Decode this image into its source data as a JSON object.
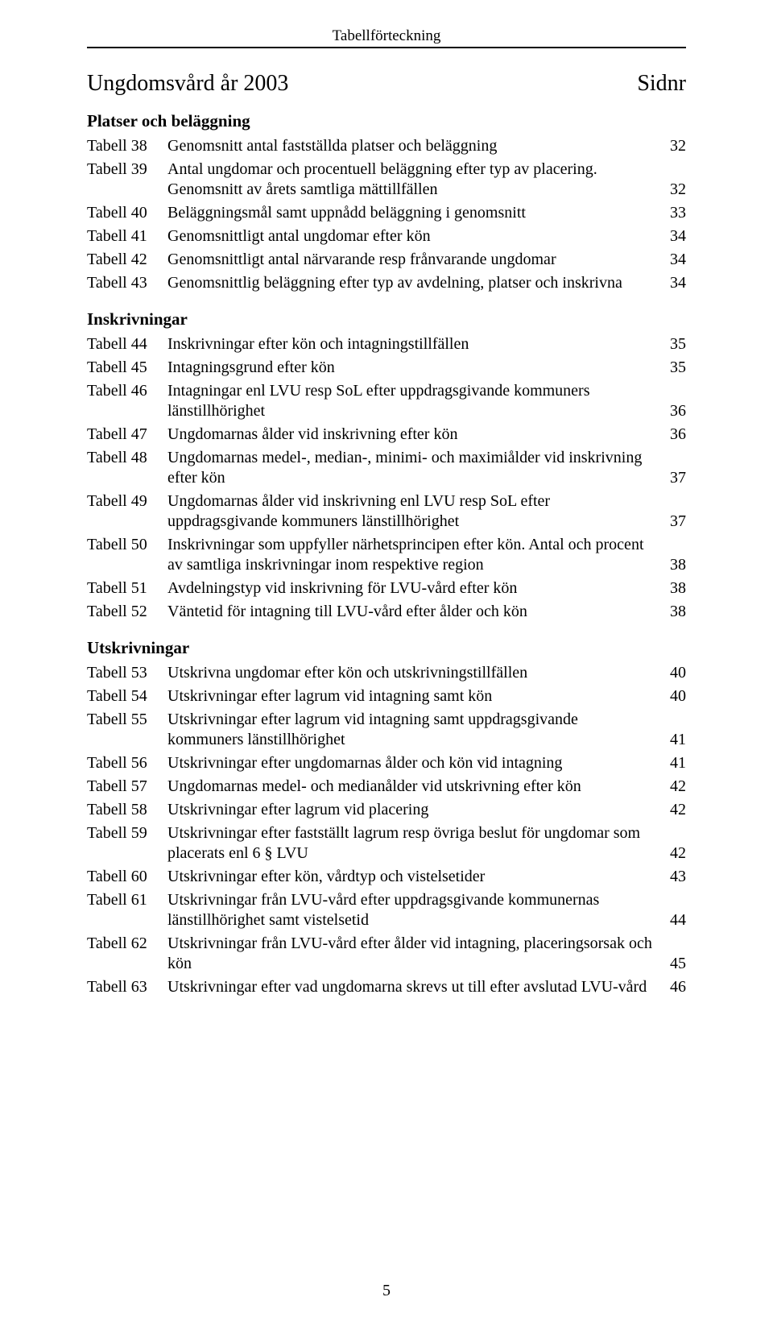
{
  "running_head": "Tabellförteckning",
  "title": "Ungdomsvård år 2003",
  "sidnr_label": "Sidnr",
  "page_number": "5",
  "sections": [
    {
      "heading": "Platser och beläggning",
      "rows": [
        {
          "label": "Tabell 38",
          "title": "Genomsnitt antal fastställda platser och beläggning",
          "page": "32"
        },
        {
          "label": "Tabell 39",
          "title": "Antal ungdomar och procentuell beläggning efter typ av placering. Genomsnitt av årets samtliga mättillfällen",
          "page": "32"
        },
        {
          "label": "Tabell 40",
          "title": "Beläggningsmål samt uppnådd beläggning i genomsnitt",
          "page": "33"
        },
        {
          "label": "Tabell 41",
          "title": "Genomsnittligt antal ungdomar efter kön",
          "page": "34"
        },
        {
          "label": "Tabell 42",
          "title": "Genomsnittligt antal närvarande resp frånvarande ungdomar",
          "page": "34"
        },
        {
          "label": "Tabell 43",
          "title": "Genomsnittlig beläggning efter typ av avdelning, platser och inskrivna",
          "page": "34"
        }
      ]
    },
    {
      "heading": "Inskrivningar",
      "rows": [
        {
          "label": "Tabell 44",
          "title": "Inskrivningar efter kön och intagningstillfällen",
          "page": "35"
        },
        {
          "label": "Tabell 45",
          "title": "Intagningsgrund efter kön",
          "page": "35"
        },
        {
          "label": "Tabell 46",
          "title": "Intagningar enl LVU resp SoL efter uppdragsgivande kommuners länstillhörighet",
          "page": "36"
        },
        {
          "label": "Tabell 47",
          "title": "Ungdomarnas ålder vid inskrivning efter kön",
          "page": "36"
        },
        {
          "label": "Tabell 48",
          "title": "Ungdomarnas medel-, median-, minimi- och maximiålder vid inskrivning efter kön",
          "page": "37"
        },
        {
          "label": "Tabell 49",
          "title": "Ungdomarnas ålder vid inskrivning enl LVU resp SoL efter uppdragsgivande kommuners länstillhörighet",
          "page": "37"
        },
        {
          "label": "Tabell 50",
          "title": "Inskrivningar som uppfyller närhetsprincipen efter kön. Antal och procent av samtliga inskrivningar inom respektive region",
          "page": "38"
        },
        {
          "label": "Tabell 51",
          "title": "Avdelningstyp vid inskrivning för LVU-vård efter kön",
          "page": "38"
        },
        {
          "label": "Tabell 52",
          "title": "Väntetid för intagning till LVU-vård efter ålder och kön",
          "page": "38"
        }
      ]
    },
    {
      "heading": "Utskrivningar",
      "rows": [
        {
          "label": "Tabell 53",
          "title": "Utskrivna ungdomar efter kön och utskrivningstillfällen",
          "page": "40"
        },
        {
          "label": "Tabell 54",
          "title": "Utskrivningar efter lagrum vid intagning samt kön",
          "page": "40"
        },
        {
          "label": "Tabell 55",
          "title": "Utskrivningar efter lagrum vid intagning samt uppdragsgivande kommuners länstillhörighet",
          "page": "41"
        },
        {
          "label": "Tabell 56",
          "title": "Utskrivningar efter ungdomarnas ålder och kön vid intagning",
          "page": "41"
        },
        {
          "label": "Tabell 57",
          "title": "Ungdomarnas medel- och medianålder vid utskrivning efter kön",
          "page": "42"
        },
        {
          "label": "Tabell 58",
          "title": "Utskrivningar efter lagrum vid placering",
          "page": "42"
        },
        {
          "label": "Tabell 59",
          "title": "Utskrivningar efter fastställt lagrum resp övriga beslut för ungdomar som placerats enl 6 § LVU",
          "page": "42"
        },
        {
          "label": "Tabell 60",
          "title": "Utskrivningar efter kön, vårdtyp och vistelsetider",
          "page": "43"
        },
        {
          "label": "Tabell 61",
          "title": "Utskrivningar från LVU-vård efter uppdragsgivande kommunernas länstillhörighet samt vistelsetid",
          "page": "44"
        },
        {
          "label": "Tabell 62",
          "title": "Utskrivningar från LVU-vård efter ålder vid intagning, placeringsorsak och kön",
          "page": "45"
        },
        {
          "label": "Tabell 63",
          "title": "Utskrivningar efter vad ungdomarna skrevs ut till efter avslutad LVU-vård",
          "page": "46"
        }
      ]
    }
  ]
}
